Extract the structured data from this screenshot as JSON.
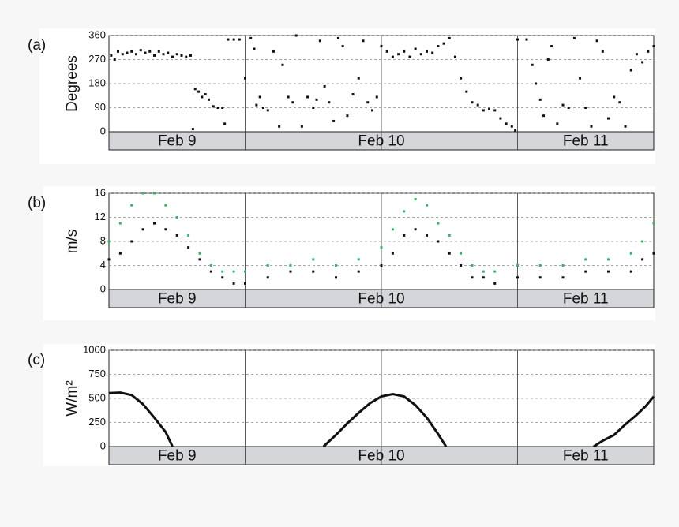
{
  "chart_data": [
    {
      "type": "scatter",
      "panel_label": "(a)",
      "ylabel": "Degrees",
      "xlim": [
        0,
        48
      ],
      "ylim": [
        0,
        360
      ],
      "yticks": [
        0,
        90,
        180,
        270,
        360
      ],
      "grid": true,
      "xticks": [
        {
          "value": 6,
          "label": "Feb 9"
        },
        {
          "value": 24,
          "label": "Feb 10"
        },
        {
          "value": 42,
          "label": "Feb 11"
        }
      ],
      "vlines": [
        12,
        24,
        36
      ],
      "series": [
        {
          "color": "#111111",
          "x": [
            0.2,
            0.5,
            0.8,
            1.2,
            1.6,
            2,
            2.4,
            2.8,
            3.2,
            3.6,
            4,
            4.4,
            4.8,
            5.2,
            5.6,
            6,
            6.4,
            6.8,
            7.2,
            7.4,
            7.6,
            7.9,
            8.2,
            8.5,
            8.8,
            9.2,
            9.6,
            10,
            10.2,
            10.5,
            11,
            11.5,
            12,
            12.5,
            12.8,
            13,
            13.3,
            13.6,
            14,
            14.5,
            15,
            15.3,
            15.8,
            16.2,
            16.5,
            17,
            17.5,
            18,
            18.3,
            18.6,
            19,
            19.4,
            19.8,
            20.2,
            20.6,
            21,
            21.5,
            22,
            22.4,
            22.8,
            23.2,
            23.6,
            24,
            24.5,
            25,
            25.5,
            26,
            26.5,
            27,
            27.5,
            28,
            28.5,
            29,
            29.5,
            30,
            30.5,
            31,
            31.5,
            32,
            32.5,
            33,
            33.5,
            34,
            34.5,
            35,
            35.5,
            35.8,
            36,
            36.8,
            37.3,
            37.6,
            38,
            38.3,
            38.7,
            39,
            39.5,
            40,
            40.5,
            41,
            41.5,
            42,
            42.5,
            43,
            43.5,
            44,
            44.5,
            45,
            45.5,
            46,
            46.5,
            47,
            47.5,
            48
          ],
          "values": [
            285,
            270,
            300,
            290,
            295,
            300,
            290,
            305,
            295,
            300,
            285,
            300,
            290,
            295,
            280,
            290,
            285,
            280,
            285,
            10,
            160,
            150,
            130,
            140,
            120,
            95,
            90,
            90,
            30,
            345,
            345,
            345,
            200,
            350,
            310,
            100,
            130,
            90,
            80,
            300,
            20,
            250,
            130,
            110,
            360,
            20,
            130,
            90,
            120,
            340,
            170,
            110,
            40,
            350,
            320,
            60,
            140,
            200,
            340,
            110,
            80,
            130,
            320,
            300,
            280,
            290,
            300,
            280,
            310,
            290,
            300,
            295,
            320,
            330,
            350,
            280,
            200,
            150,
            110,
            100,
            80,
            85,
            80,
            50,
            30,
            20,
            5,
            345,
            345,
            250,
            180,
            120,
            60,
            270,
            320,
            30,
            100,
            90,
            350,
            200,
            90,
            20,
            340,
            300,
            50,
            130,
            110,
            20,
            230,
            290,
            260,
            300,
            320
          ]
        }
      ]
    },
    {
      "type": "scatter",
      "panel_label": "(b)",
      "ylabel": "m/s",
      "xlim": [
        0,
        48
      ],
      "ylim": [
        0,
        16
      ],
      "yticks": [
        0,
        4,
        8,
        12,
        16
      ],
      "grid": true,
      "xticks": [
        {
          "value": 6,
          "label": "Feb 9"
        },
        {
          "value": 24,
          "label": "Feb 10"
        },
        {
          "value": 42,
          "label": "Feb 11"
        }
      ],
      "vlines": [
        12,
        24,
        36
      ],
      "series": [
        {
          "color": "#3cb36a",
          "x": [
            0,
            1,
            2,
            3,
            4,
            5,
            6,
            7,
            8,
            9,
            10,
            11,
            12,
            14,
            16,
            18,
            20,
            22,
            24,
            25,
            26,
            27,
            28,
            29,
            30,
            31,
            32,
            33,
            34,
            36,
            38,
            40,
            42,
            44,
            46,
            47,
            48
          ],
          "values": [
            8,
            11,
            14,
            16,
            16,
            14,
            12,
            9,
            6,
            4,
            3,
            3,
            3,
            4,
            4,
            5,
            4,
            5,
            7,
            10,
            13,
            15,
            14,
            11,
            9,
            6,
            4,
            3,
            3,
            4,
            4,
            4,
            5,
            5,
            6,
            8,
            11
          ]
        },
        {
          "color": "#111111",
          "x": [
            0,
            1,
            2,
            3,
            4,
            5,
            6,
            7,
            8,
            9,
            10,
            11,
            12,
            14,
            16,
            18,
            20,
            22,
            24,
            25,
            26,
            27,
            28,
            29,
            30,
            31,
            32,
            33,
            34,
            36,
            38,
            40,
            42,
            44,
            46,
            47,
            48
          ],
          "values": [
            5,
            6,
            8,
            10,
            11,
            10,
            9,
            7,
            5,
            3,
            2,
            1,
            1,
            2,
            3,
            3,
            2,
            3,
            4,
            6,
            9,
            10,
            9,
            8,
            6,
            4,
            2,
            2,
            1,
            2,
            2,
            2,
            3,
            3,
            3,
            5,
            6
          ]
        }
      ]
    },
    {
      "type": "line",
      "panel_label": "(c)",
      "ylabel": "W/m²",
      "xlim": [
        0,
        48
      ],
      "ylim": [
        0,
        1000
      ],
      "yticks": [
        0,
        250,
        500,
        750,
        1000
      ],
      "grid": true,
      "xticks": [
        {
          "value": 6,
          "label": "Feb 9"
        },
        {
          "value": 24,
          "label": "Feb 10"
        },
        {
          "value": 42,
          "label": "Feb 11"
        }
      ],
      "vlines": [
        12,
        24,
        36
      ],
      "series": [
        {
          "color": "#111111",
          "x": [
            0,
            1,
            2,
            3,
            4,
            5,
            5.6,
            12,
            18.9,
            20,
            21,
            22,
            23,
            24,
            25,
            26,
            27,
            28,
            29,
            29.7,
            36,
            42.7,
            43.5,
            44.5,
            45.5,
            46.5,
            47.3,
            48
          ],
          "values": [
            555,
            560,
            535,
            440,
            300,
            150,
            0,
            null,
            0,
            120,
            240,
            350,
            450,
            520,
            545,
            520,
            430,
            300,
            130,
            0,
            null,
            0,
            60,
            120,
            230,
            330,
            420,
            520
          ]
        }
      ]
    }
  ]
}
